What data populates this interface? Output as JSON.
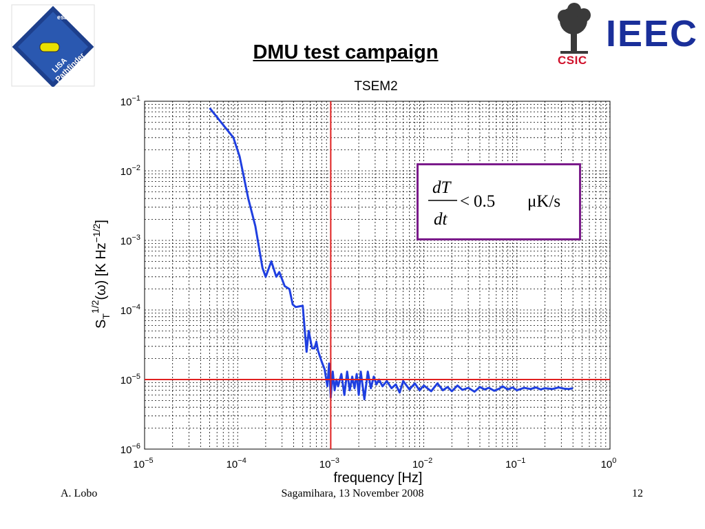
{
  "slide": {
    "title": "DMU test campaign",
    "footer_author": "A. Lobo",
    "footer_venue": "Sagamihara, 13 November 2008",
    "footer_page": "12"
  },
  "logos": {
    "lisa_lines": [
      "esa",
      "LISA",
      "Pathfinder"
    ],
    "ieec": "IEEC",
    "csic": "CSIC"
  },
  "colors": {
    "series": "#1f3fe0",
    "reference_lines": "#e02020",
    "box_border": "#7a1a8a",
    "ieec_blue": "#1a2f9a",
    "csic_red": "#d0102a"
  },
  "chart_data": {
    "type": "line",
    "title": "TSEM2",
    "xlabel": "frequency [Hz]",
    "ylabel": "S_T^{1/2}(ω) [K Hz^{-1/2}]",
    "x_scale": "log",
    "y_scale": "log",
    "xlim": [
      1e-05,
      1
    ],
    "ylim": [
      1e-06,
      0.1
    ],
    "grid": true,
    "x_tick_labels": [
      "10^-5",
      "10^-4",
      "10^-3",
      "10^-2",
      "10^-1",
      "10^0"
    ],
    "y_tick_labels": [
      "10^-6",
      "10^-5",
      "10^-4",
      "10^-3",
      "10^-2",
      "10^-1"
    ],
    "reference_lines": {
      "vertical_x": 0.001,
      "horizontal_y": 1e-05
    },
    "annotation": {
      "lhs_num": "dT",
      "lhs_den": "dt",
      "relation": "<",
      "value": "0.5",
      "unit": "μK/s"
    },
    "series": [
      {
        "x": [
          5e-05,
          9e-05,
          0.000105,
          0.00013,
          0.000155,
          0.000185,
          0.0002,
          0.00023,
          0.00026,
          0.00028,
          0.00032,
          0.00036,
          0.00039,
          0.00042,
          0.0005,
          0.00055,
          0.00058,
          0.00063,
          0.00067,
          0.0007,
          0.00073,
          0.0008,
          0.00086,
          0.00092,
          0.00096,
          0.001,
          0.00105,
          0.0011,
          0.00115,
          0.0012,
          0.0013,
          0.0014,
          0.0015,
          0.0016,
          0.0017,
          0.0018,
          0.0019,
          0.002,
          0.0021,
          0.0023,
          0.0025,
          0.0027,
          0.0029,
          0.0031,
          0.0033,
          0.0036,
          0.004,
          0.0045,
          0.005,
          0.0055,
          0.006,
          0.007,
          0.008,
          0.009,
          0.01,
          0.012,
          0.014,
          0.016,
          0.018,
          0.02,
          0.023,
          0.026,
          0.03,
          0.035,
          0.04,
          0.045,
          0.05,
          0.057,
          0.065,
          0.07,
          0.08,
          0.09,
          0.1,
          0.12,
          0.14,
          0.16,
          0.18,
          0.2,
          0.24,
          0.28,
          0.32,
          0.36,
          0.4
        ],
        "y": [
          0.08,
          0.03,
          0.016,
          0.004,
          0.0016,
          0.0004,
          0.0003,
          0.0005,
          0.0003,
          0.00035,
          0.00022,
          0.0002,
          0.00012,
          0.00011,
          0.000115,
          2.5e-05,
          5e-05,
          2.8e-05,
          2.8e-05,
          3.5e-05,
          2.6e-05,
          1.8e-05,
          1.4e-05,
          8e-06,
          1.7e-05,
          5.5e-06,
          1.3e-05,
          7e-06,
          1e-05,
          8e-06,
          1.2e-05,
          6e-06,
          1.3e-05,
          7e-06,
          1.1e-05,
          7.5e-06,
          1.2e-05,
          6e-06,
          1.3e-05,
          5.2e-06,
          1.3e-05,
          7.5e-06,
          1.1e-05,
          8.5e-06,
          1e-05,
          8e-06,
          9.5e-06,
          7.5e-06,
          8.5e-06,
          6.5e-06,
          9.5e-06,
          7.2e-06,
          8.8e-06,
          7e-06,
          8.2e-06,
          6.8e-06,
          8.8e-06,
          7e-06,
          7.8e-06,
          6.8e-06,
          8.2e-06,
          7.1e-06,
          7.6e-06,
          6.7e-06,
          7.8e-06,
          7.2e-06,
          7.6e-06,
          6.9e-06,
          7.4e-06,
          8e-06,
          7.2e-06,
          7.7e-06,
          7e-06,
          7.6e-06,
          7.3e-06,
          7.7e-06,
          7.2e-06,
          7.5e-06,
          7.3e-06,
          7.7e-06,
          7.4e-06,
          7.3e-06,
          7.5e-06
        ]
      }
    ]
  }
}
